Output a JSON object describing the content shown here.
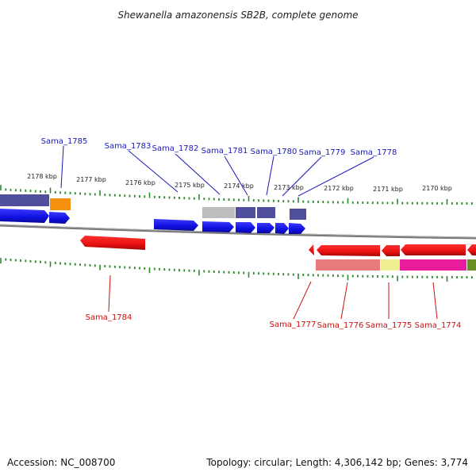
{
  "title": "Shewanella amazonensis SB2B, complete genome",
  "footer": {
    "accession": "Accession: NC_008700",
    "topology": "Topology: circular; Length: 4,306,142 bp; Genes: 3,774"
  },
  "colors": {
    "forward_gene": "#1010e8",
    "reverse_gene": "#ee1010",
    "label_forward": "#1a1ab8",
    "label_reverse": "#cc1010",
    "tick": "#2a8a2a",
    "backbone": "#808080",
    "cog_purple": "#4f4f9e",
    "cog_gray": "#bdbdbd",
    "cog_orange": "#f5900f",
    "cog_salmon": "#e87a7a",
    "cog_yellow": "#eeee90",
    "cog_magenta": "#e81c9c",
    "cog_olive": "#6b8e23"
  },
  "kbp_ticks": [
    {
      "label": "2178 kbp"
    },
    {
      "label": "2177 kbp"
    },
    {
      "label": "2176 kbp"
    },
    {
      "label": "2175 kbp"
    },
    {
      "label": "2174 kbp"
    },
    {
      "label": "2173 kbp"
    },
    {
      "label": "2172 kbp"
    },
    {
      "label": "2171 kbp"
    },
    {
      "label": "2170 kbp"
    }
  ],
  "genes_forward": [
    {
      "label": "Sama_1785"
    },
    {
      "label": "Sama_1783"
    },
    {
      "label": "Sama_1782"
    },
    {
      "label": "Sama_1781"
    },
    {
      "label": "Sama_1780"
    },
    {
      "label": "Sama_1779"
    },
    {
      "label": "Sama_1778"
    }
  ],
  "genes_reverse": [
    {
      "label": "Sama_1784"
    },
    {
      "label": "Sama_1777"
    },
    {
      "label": "Sama_1776"
    },
    {
      "label": "Sama_1775"
    },
    {
      "label": "Sama_1774"
    }
  ]
}
